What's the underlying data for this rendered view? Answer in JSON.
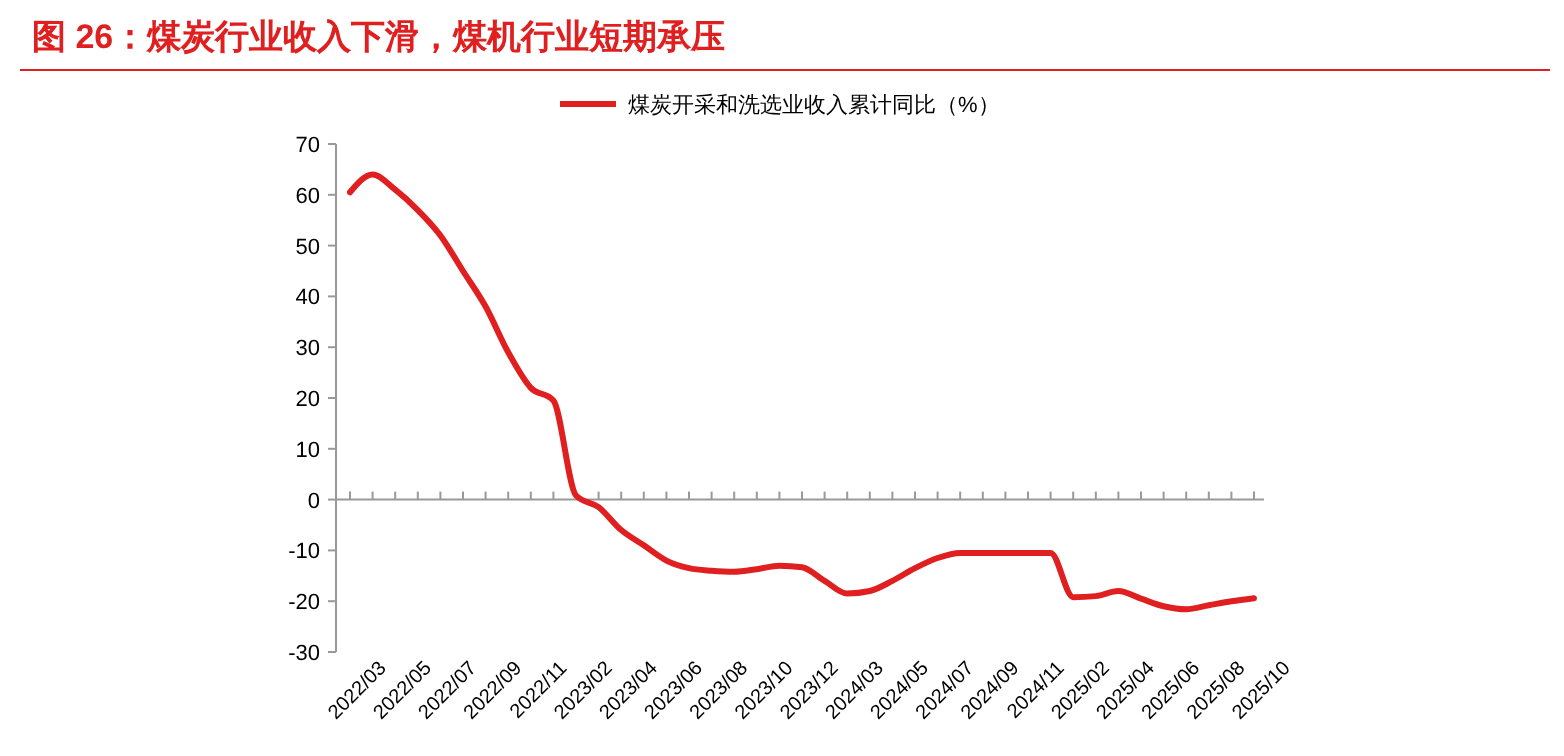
{
  "chart_data": {
    "type": "line",
    "title": "图 26：煤炭行业收入下滑，煤机行业短期承压",
    "categories": [
      "2022/03",
      null,
      "2022/05",
      null,
      "2022/07",
      null,
      "2022/09",
      null,
      "2022/11",
      null,
      "2023/02",
      null,
      "2023/04",
      null,
      "2023/06",
      null,
      "2023/08",
      null,
      "2023/10",
      null,
      "2023/12",
      null,
      "2024/03",
      null,
      "2024/05",
      null,
      "2024/07",
      null,
      "2024/09",
      null,
      "2024/11",
      null,
      "2025/02",
      null,
      "2025/04",
      null,
      "2025/06",
      null,
      "2025/08",
      null,
      "2025/10"
    ],
    "series": [
      {
        "name": "煤炭开采和洗选业收入累计同比（%）",
        "color": "#e02020",
        "values": [
          60.5,
          64,
          61,
          57,
          52,
          45,
          38,
          29,
          22,
          19.5,
          0.8,
          -1.5,
          -6,
          -9,
          -12,
          -13.5,
          -14,
          -14.2,
          -13.7,
          -13,
          -13.3,
          -16,
          -18.5,
          -18,
          -16,
          -13.5,
          -11.5,
          -10.5,
          -10.5,
          -10.5,
          -10.5,
          -10.5,
          -19.2,
          -19,
          -18,
          -19.5,
          -21,
          -21.6,
          -20.8,
          -20,
          -19.4
        ]
      }
    ],
    "ylim": [
      -30,
      70
    ],
    "yticks": [
      -30,
      -20,
      -10,
      0,
      10,
      20,
      30,
      40,
      50,
      60,
      70
    ],
    "legend": "top",
    "marker": "none",
    "line_style": "solid"
  }
}
